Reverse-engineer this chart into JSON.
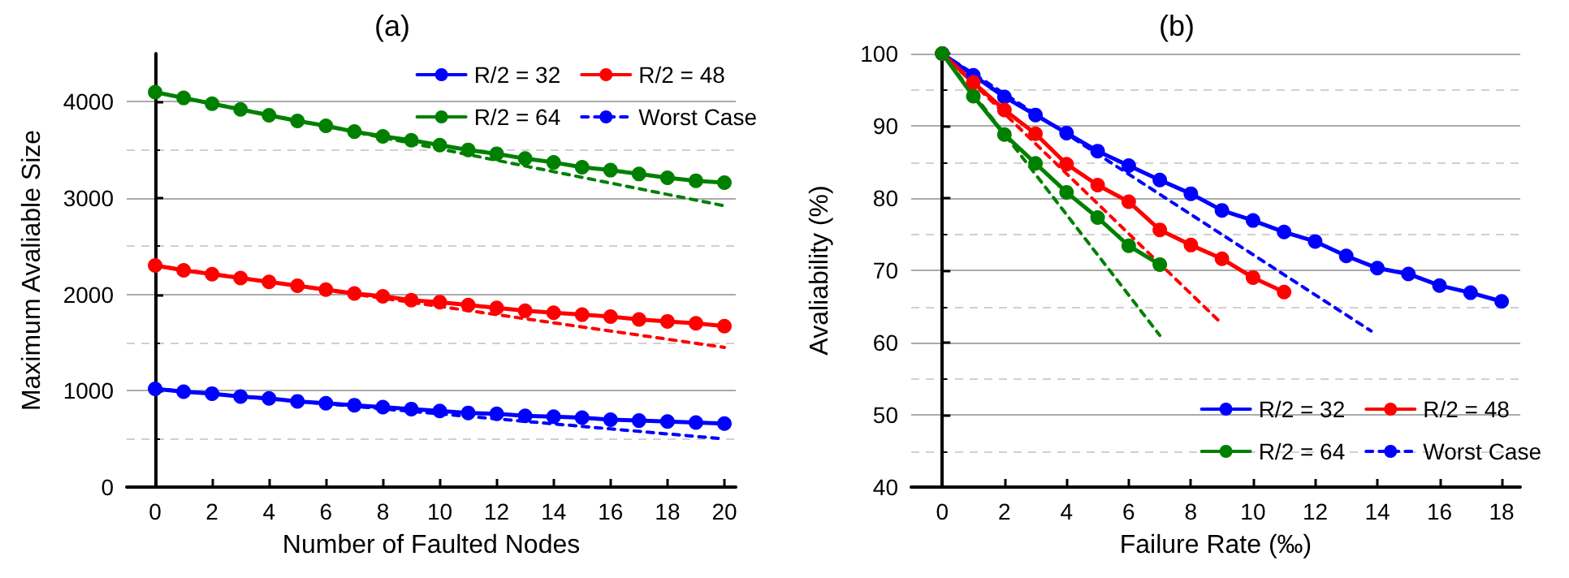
{
  "chart_data": [
    {
      "type": "line",
      "title": "(a)",
      "xlabel": "Number of Faulted Nodes",
      "ylabel": "Maximum Avaliable Size",
      "xlim": [
        -1,
        20.4
      ],
      "ylim": [
        0,
        4500
      ],
      "xticks": [
        0,
        2,
        4,
        6,
        8,
        10,
        12,
        14,
        16,
        18,
        20
      ],
      "yticks": [
        0,
        1000,
        2000,
        3000,
        4000
      ],
      "grid": "y",
      "legend": "top right",
      "marker": "circle",
      "series": [
        {
          "name": "R/2 = 32",
          "color": "#0000ff",
          "x": [
            0,
            1,
            2,
            3,
            4,
            5,
            6,
            7,
            8,
            9,
            10,
            11,
            12,
            13,
            14,
            15,
            16,
            17,
            18,
            19,
            20
          ],
          "values": [
            1020,
            990,
            970,
            940,
            920,
            890,
            870,
            850,
            830,
            810,
            790,
            770,
            760,
            740,
            730,
            720,
            700,
            690,
            680,
            670,
            660
          ]
        },
        {
          "name": "R/2 = 48",
          "color": "#ff0000",
          "x": [
            0,
            1,
            2,
            3,
            4,
            5,
            6,
            7,
            8,
            9,
            10,
            11,
            12,
            13,
            14,
            15,
            16,
            17,
            18,
            19,
            20
          ],
          "values": [
            2300,
            2250,
            2210,
            2170,
            2130,
            2090,
            2050,
            2010,
            1980,
            1940,
            1920,
            1890,
            1860,
            1830,
            1810,
            1790,
            1770,
            1740,
            1720,
            1700,
            1670
          ]
        },
        {
          "name": "R/2 = 64",
          "color": "#008000",
          "x": [
            0,
            1,
            2,
            3,
            4,
            5,
            6,
            7,
            8,
            9,
            10,
            11,
            12,
            13,
            14,
            15,
            16,
            17,
            18,
            19,
            20
          ],
          "values": [
            4100,
            4040,
            3980,
            3920,
            3860,
            3800,
            3750,
            3690,
            3640,
            3600,
            3550,
            3500,
            3460,
            3410,
            3370,
            3320,
            3290,
            3250,
            3210,
            3180,
            3160
          ]
        },
        {
          "name": "Worst Case",
          "color": "#0000ff",
          "line_style": "dashed",
          "marker": "none",
          "x": [
            0,
            20
          ],
          "values": [
            1020,
            500
          ]
        },
        {
          "color": "#ff0000",
          "line_style": "dashed",
          "marker": "none",
          "x": [
            0,
            20
          ],
          "values": [
            2300,
            1450
          ]
        },
        {
          "color": "#008000",
          "line_style": "dashed",
          "marker": "none",
          "x": [
            0,
            20
          ],
          "values": [
            4100,
            2920
          ]
        }
      ]
    },
    {
      "type": "line",
      "title": "(b)",
      "xlabel": "Failure Rate (‰)",
      "ylabel": "Avaliability (%)",
      "xlim": [
        -1,
        18.6
      ],
      "ylim": [
        40,
        100
      ],
      "xticks": [
        0,
        2,
        4,
        6,
        8,
        10,
        12,
        14,
        16,
        18
      ],
      "yticks": [
        40,
        50,
        60,
        70,
        80,
        90,
        100
      ],
      "grid": "y",
      "legend": "bottom right",
      "marker": "circle",
      "series": [
        {
          "name": "R/2 = 32",
          "color": "#0000ff",
          "x": [
            0,
            1,
            2,
            3,
            4,
            5,
            6,
            7,
            8,
            9,
            10,
            11,
            12,
            13,
            14,
            15,
            16,
            17,
            18
          ],
          "values": [
            100,
            97,
            94,
            91.5,
            89,
            86.5,
            84.5,
            82.5,
            80.6,
            78.3,
            76.9,
            75.3,
            74,
            72,
            70.3,
            69.5,
            67.9,
            66.9,
            65.7
          ]
        },
        {
          "name": "R/2 = 48",
          "color": "#ff0000",
          "x": [
            0,
            1,
            2,
            3,
            4,
            5,
            6,
            7,
            8,
            9,
            10,
            11
          ],
          "values": [
            100,
            96,
            92.2,
            88.9,
            84.7,
            81.8,
            79.5,
            75.6,
            73.5,
            71.6,
            69,
            67
          ]
        },
        {
          "name": "R/2 = 64",
          "color": "#008000",
          "x": [
            0,
            1,
            2,
            3,
            4,
            5,
            6,
            7
          ],
          "values": [
            100,
            94.1,
            88.8,
            84.8,
            80.8,
            77.3,
            73.4,
            70.8
          ]
        },
        {
          "name": "Worst Case",
          "color": "#0000ff",
          "line_style": "dashed",
          "marker": "none",
          "x": [
            0,
            13.8
          ],
          "values": [
            100,
            61.6
          ]
        },
        {
          "color": "#ff0000",
          "line_style": "dashed",
          "marker": "none",
          "x": [
            0,
            9
          ],
          "values": [
            100,
            62.6
          ]
        },
        {
          "color": "#008000",
          "line_style": "dashed",
          "marker": "none",
          "x": [
            0,
            7
          ],
          "values": [
            100,
            61
          ]
        }
      ]
    }
  ]
}
